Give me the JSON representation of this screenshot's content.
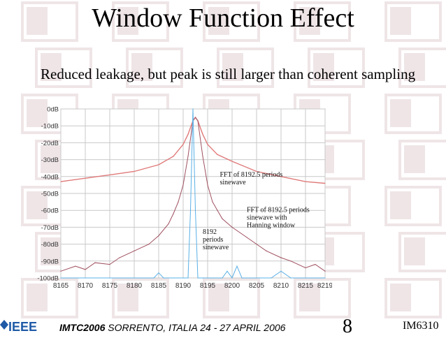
{
  "slide": {
    "title": "Window Function Effect",
    "subtitle": "Reduced leakage, but peak is still larger than coherent sampling"
  },
  "footer": {
    "ieee_logo": "IEEE",
    "conference_brand": "IMTC2006",
    "conference_location": "SORRENTO, ITALIA 24 - 27 APRIL 2006",
    "page_number": "8",
    "slide_id": "IM6310"
  },
  "colors": {
    "noncoherent": "#a05060",
    "hanning": "#e07a7a",
    "coherent": "#5ab0e6",
    "grid": "#c9c9c9"
  },
  "chart_data": {
    "type": "line",
    "xlim": [
      8165,
      8219
    ],
    "ylim": [
      -100,
      0
    ],
    "x_ticks": [
      "8165",
      "8170",
      "8175",
      "8180",
      "8185",
      "8190",
      "8195",
      "8200",
      "8205",
      "8210",
      "8215",
      "8219"
    ],
    "y_ticks": [
      "0dB",
      "-10dB",
      "-20dB",
      "-30dB",
      "-40dB",
      "-50dB",
      "-60dB",
      "-70dB",
      "-80dB",
      "-90dB",
      "-100dB"
    ],
    "grid": true,
    "annotations": [
      {
        "lines": [
          "FFT of 8192.5 periods",
          "sinewave"
        ],
        "x": 8197.5,
        "y": -40
      },
      {
        "lines": [
          "FFT of 8192.5 periods",
          "sinewave with",
          "Hanning window"
        ],
        "x": 8203,
        "y": -61
      },
      {
        "lines": [
          "8192",
          "periods",
          "sinewave"
        ],
        "x": 8194,
        "y": -74
      }
    ],
    "series": [
      {
        "color": "#e07a7a",
        "x": [
          8165,
          8170,
          8175,
          8180,
          8185,
          8188,
          8190,
          8191,
          8192,
          8192.5,
          8193,
          8194,
          8195,
          8197,
          8200,
          8205,
          8210,
          8215,
          8219
        ],
        "y": [
          -43,
          -41,
          -39,
          -37,
          -33,
          -28,
          -21,
          -15,
          -7,
          -5,
          -7,
          -15,
          -21,
          -27,
          -31,
          -37,
          -40,
          -43,
          -44
        ]
      },
      {
        "color": "#a05060",
        "x": [
          8165,
          8168,
          8170,
          8172,
          8175,
          8177,
          8180,
          8183,
          8185,
          8187,
          8188,
          8189,
          8190,
          8191,
          8192,
          8192.5,
          8193,
          8194,
          8195,
          8196,
          8197,
          8198,
          8200,
          8203,
          8205,
          8207,
          8210,
          8212,
          8215,
          8217,
          8219
        ],
        "y": [
          -96,
          -93,
          -95,
          -91,
          -92,
          -88,
          -84,
          -80,
          -75,
          -68,
          -62,
          -55,
          -45,
          -28,
          -7,
          -5,
          -7,
          -28,
          -45,
          -55,
          -60,
          -65,
          -70,
          -76,
          -80,
          -84,
          -88,
          -90,
          -94,
          -92,
          -96
        ]
      },
      {
        "color": "#5ab0e6",
        "x": [
          8165,
          8170,
          8175,
          8180,
          8184,
          8185,
          8186,
          8188,
          8190,
          8191,
          8191.5,
          8192,
          8192.5,
          8193,
          8194,
          8196,
          8198,
          8199,
          8200,
          8201,
          8202,
          8205,
          8208,
          8210,
          8212,
          8215,
          8219
        ],
        "y": [
          -100,
          -100,
          -100,
          -100,
          -100,
          -97,
          -100,
          -100,
          -100,
          -100,
          -60,
          0,
          -60,
          -100,
          -100,
          -100,
          -100,
          -96,
          -100,
          -93,
          -100,
          -100,
          -100,
          -96,
          -100,
          -100,
          -100
        ]
      }
    ]
  }
}
